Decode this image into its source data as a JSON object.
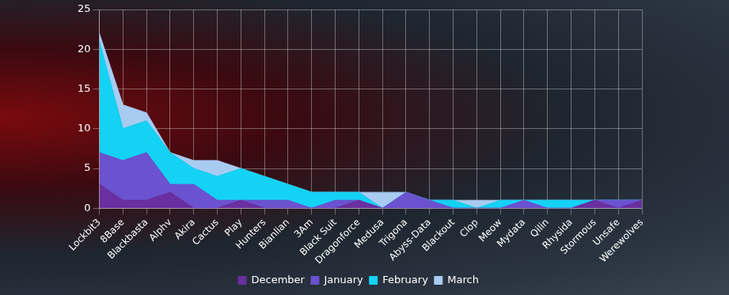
{
  "chart_data": {
    "type": "area",
    "stacked": true,
    "grid": true,
    "legend": "bottom",
    "categories": [
      "Lockbit3",
      "8Base",
      "Blackbasta",
      "Alphv",
      "Akira",
      "Cactus",
      "Play",
      "Hunters",
      "Bianlian",
      "3Am",
      "Black Suit",
      "Dragonforce",
      "Medusa",
      "Trigona",
      "Abyss-Data",
      "Blackout",
      "Clop",
      "Meow",
      "Mydata",
      "Qilin",
      "Rhysida",
      "Stormous",
      "Unsafe",
      "Werewolves"
    ],
    "series": [
      {
        "name": "December",
        "color": "#6a2fa0",
        "values": [
          3,
          1,
          1,
          2,
          0,
          0,
          1,
          0,
          0,
          0,
          0,
          1,
          0,
          0,
          0,
          0,
          0,
          0,
          0,
          0,
          0,
          1,
          0,
          1
        ]
      },
      {
        "name": "January",
        "color": "#6b52cf",
        "values": [
          4,
          5,
          6,
          1,
          3,
          1,
          0,
          1,
          1,
          0,
          1,
          0,
          0,
          2,
          1,
          0,
          0,
          0,
          1,
          0,
          0,
          0,
          1,
          0
        ]
      },
      {
        "name": "February",
        "color": "#14d2f4",
        "values": [
          14,
          4,
          4,
          4,
          2,
          3,
          4,
          3,
          2,
          2,
          1,
          1,
          0,
          0,
          0,
          1,
          0,
          1,
          0,
          1,
          1,
          0,
          0,
          0
        ]
      },
      {
        "name": "March",
        "color": "#a8cbf2",
        "values": [
          1,
          3,
          1,
          0,
          1,
          2,
          0,
          0,
          0,
          0,
          0,
          0,
          2,
          0,
          0,
          0,
          1,
          0,
          0,
          0,
          0,
          0,
          0,
          0
        ]
      }
    ],
    "ylim": [
      0,
      25
    ],
    "yticks": [
      0,
      5,
      10,
      15,
      20,
      25
    ]
  }
}
